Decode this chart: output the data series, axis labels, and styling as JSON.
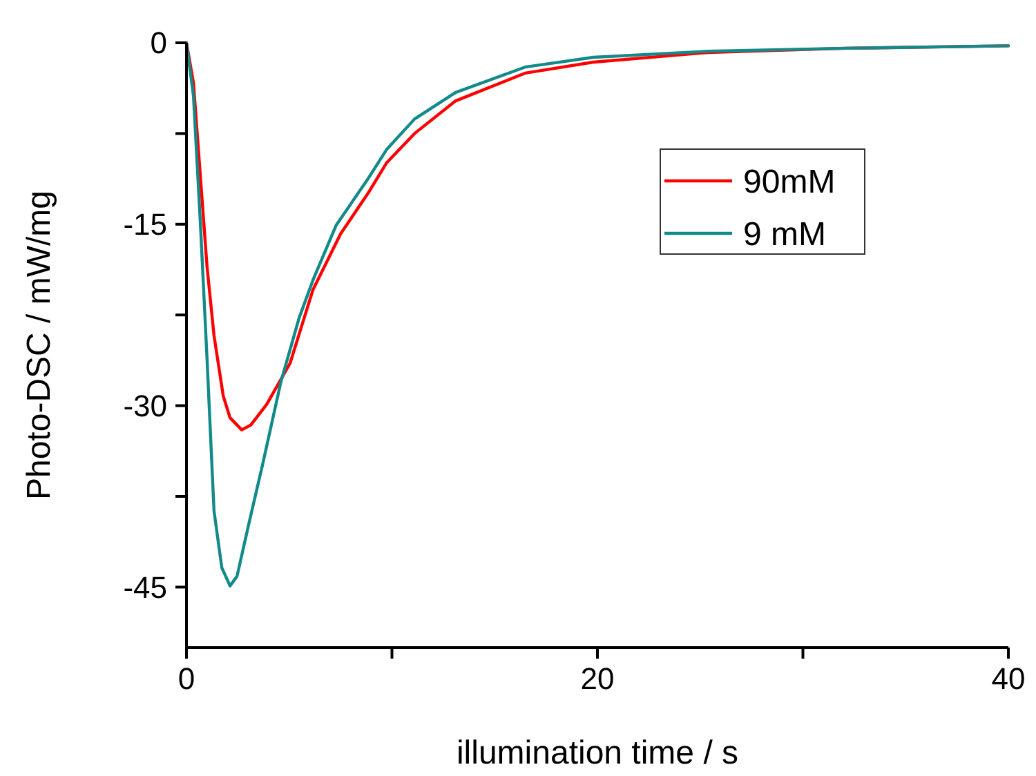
{
  "chart_data": {
    "type": "line",
    "xlabel": "illumination time / s",
    "ylabel": "Photo-DSC / mW/mg",
    "xlim": [
      0,
      40
    ],
    "ylim": [
      -50,
      0
    ],
    "xticks": [
      0,
      {
        "value": 10,
        "label": null
      },
      20,
      {
        "value": 30,
        "label": null
      },
      40
    ],
    "yticks": [
      0,
      {
        "value": -7.5,
        "label": null
      },
      -15,
      {
        "value": -22.5,
        "label": null
      },
      -30,
      {
        "value": -37.5,
        "label": null
      },
      -45
    ],
    "grid": false,
    "legend": "top right",
    "marker": "none",
    "line_style": "solid",
    "series": [
      {
        "name": "90mM",
        "color": "#ff0000",
        "x": [
          0,
          0.34,
          0.67,
          1.0,
          1.34,
          1.79,
          2.12,
          2.69,
          3.13,
          3.9,
          5.04,
          6.16,
          7.5,
          8.85,
          9.75,
          11.1,
          13.1,
          16.5,
          19.8,
          25.4,
          32.1,
          40
        ],
        "values": [
          0,
          -3.3,
          -10.9,
          -18.5,
          -24.2,
          -29.2,
          -31.0,
          -32.0,
          -31.6,
          -29.9,
          -26.5,
          -20.4,
          -15.8,
          -12.4,
          -9.9,
          -7.5,
          -4.8,
          -2.5,
          -1.6,
          -0.8,
          -0.45,
          -0.25
        ]
      },
      {
        "name": "9 mM",
        "color": "#138a8a",
        "x": [
          0,
          0.34,
          0.67,
          1.0,
          1.34,
          1.72,
          2.12,
          2.46,
          3.03,
          3.7,
          4.6,
          5.49,
          6.16,
          7.28,
          8.85,
          9.75,
          11.1,
          13.1,
          16.5,
          19.8,
          25.4,
          32.1,
          40
        ],
        "values": [
          0,
          -4.4,
          -14.7,
          -26.1,
          -38.7,
          -43.4,
          -44.9,
          -44.1,
          -39.8,
          -34.9,
          -28.0,
          -22.7,
          -19.6,
          -15.1,
          -11.2,
          -8.8,
          -6.3,
          -4.1,
          -2.0,
          -1.2,
          -0.7,
          -0.45,
          -0.25
        ]
      }
    ]
  }
}
